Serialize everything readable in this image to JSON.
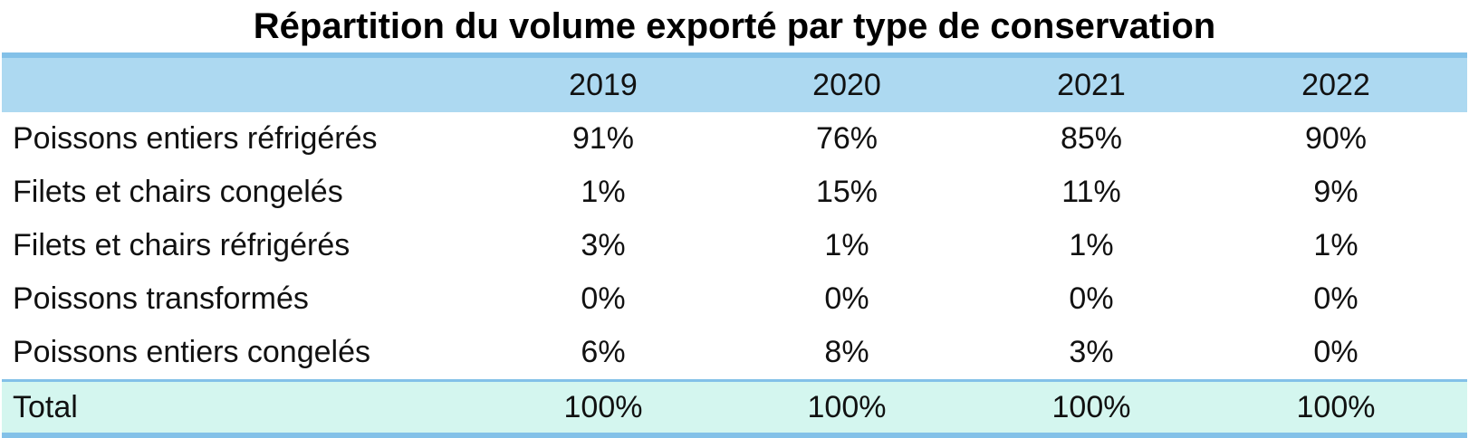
{
  "chart_data": {
    "type": "table",
    "title": "Répartition du volume exporté par type de conservation",
    "columns": [
      "2019",
      "2020",
      "2021",
      "2022"
    ],
    "rows": [
      {
        "label": "Poissons entiers réfrigérés",
        "values": [
          "91%",
          "76%",
          "85%",
          "90%"
        ]
      },
      {
        "label": "Filets et chairs congelés",
        "values": [
          "1%",
          "15%",
          "11%",
          "9%"
        ]
      },
      {
        "label": "Filets et chairs réfrigérés",
        "values": [
          "3%",
          "1%",
          "1%",
          "1%"
        ]
      },
      {
        "label": "Poissons transformés",
        "values": [
          "0%",
          "0%",
          "0%",
          "0%"
        ]
      },
      {
        "label": "Poissons entiers congelés",
        "values": [
          "6%",
          "8%",
          "3%",
          "0%"
        ]
      }
    ],
    "total": {
      "label": "Total",
      "values": [
        "100%",
        "100%",
        "100%",
        "100%"
      ]
    },
    "colors": {
      "header_bg": "#add9f1",
      "border": "#83c1e8",
      "total_bg": "#d4f6ef"
    }
  }
}
